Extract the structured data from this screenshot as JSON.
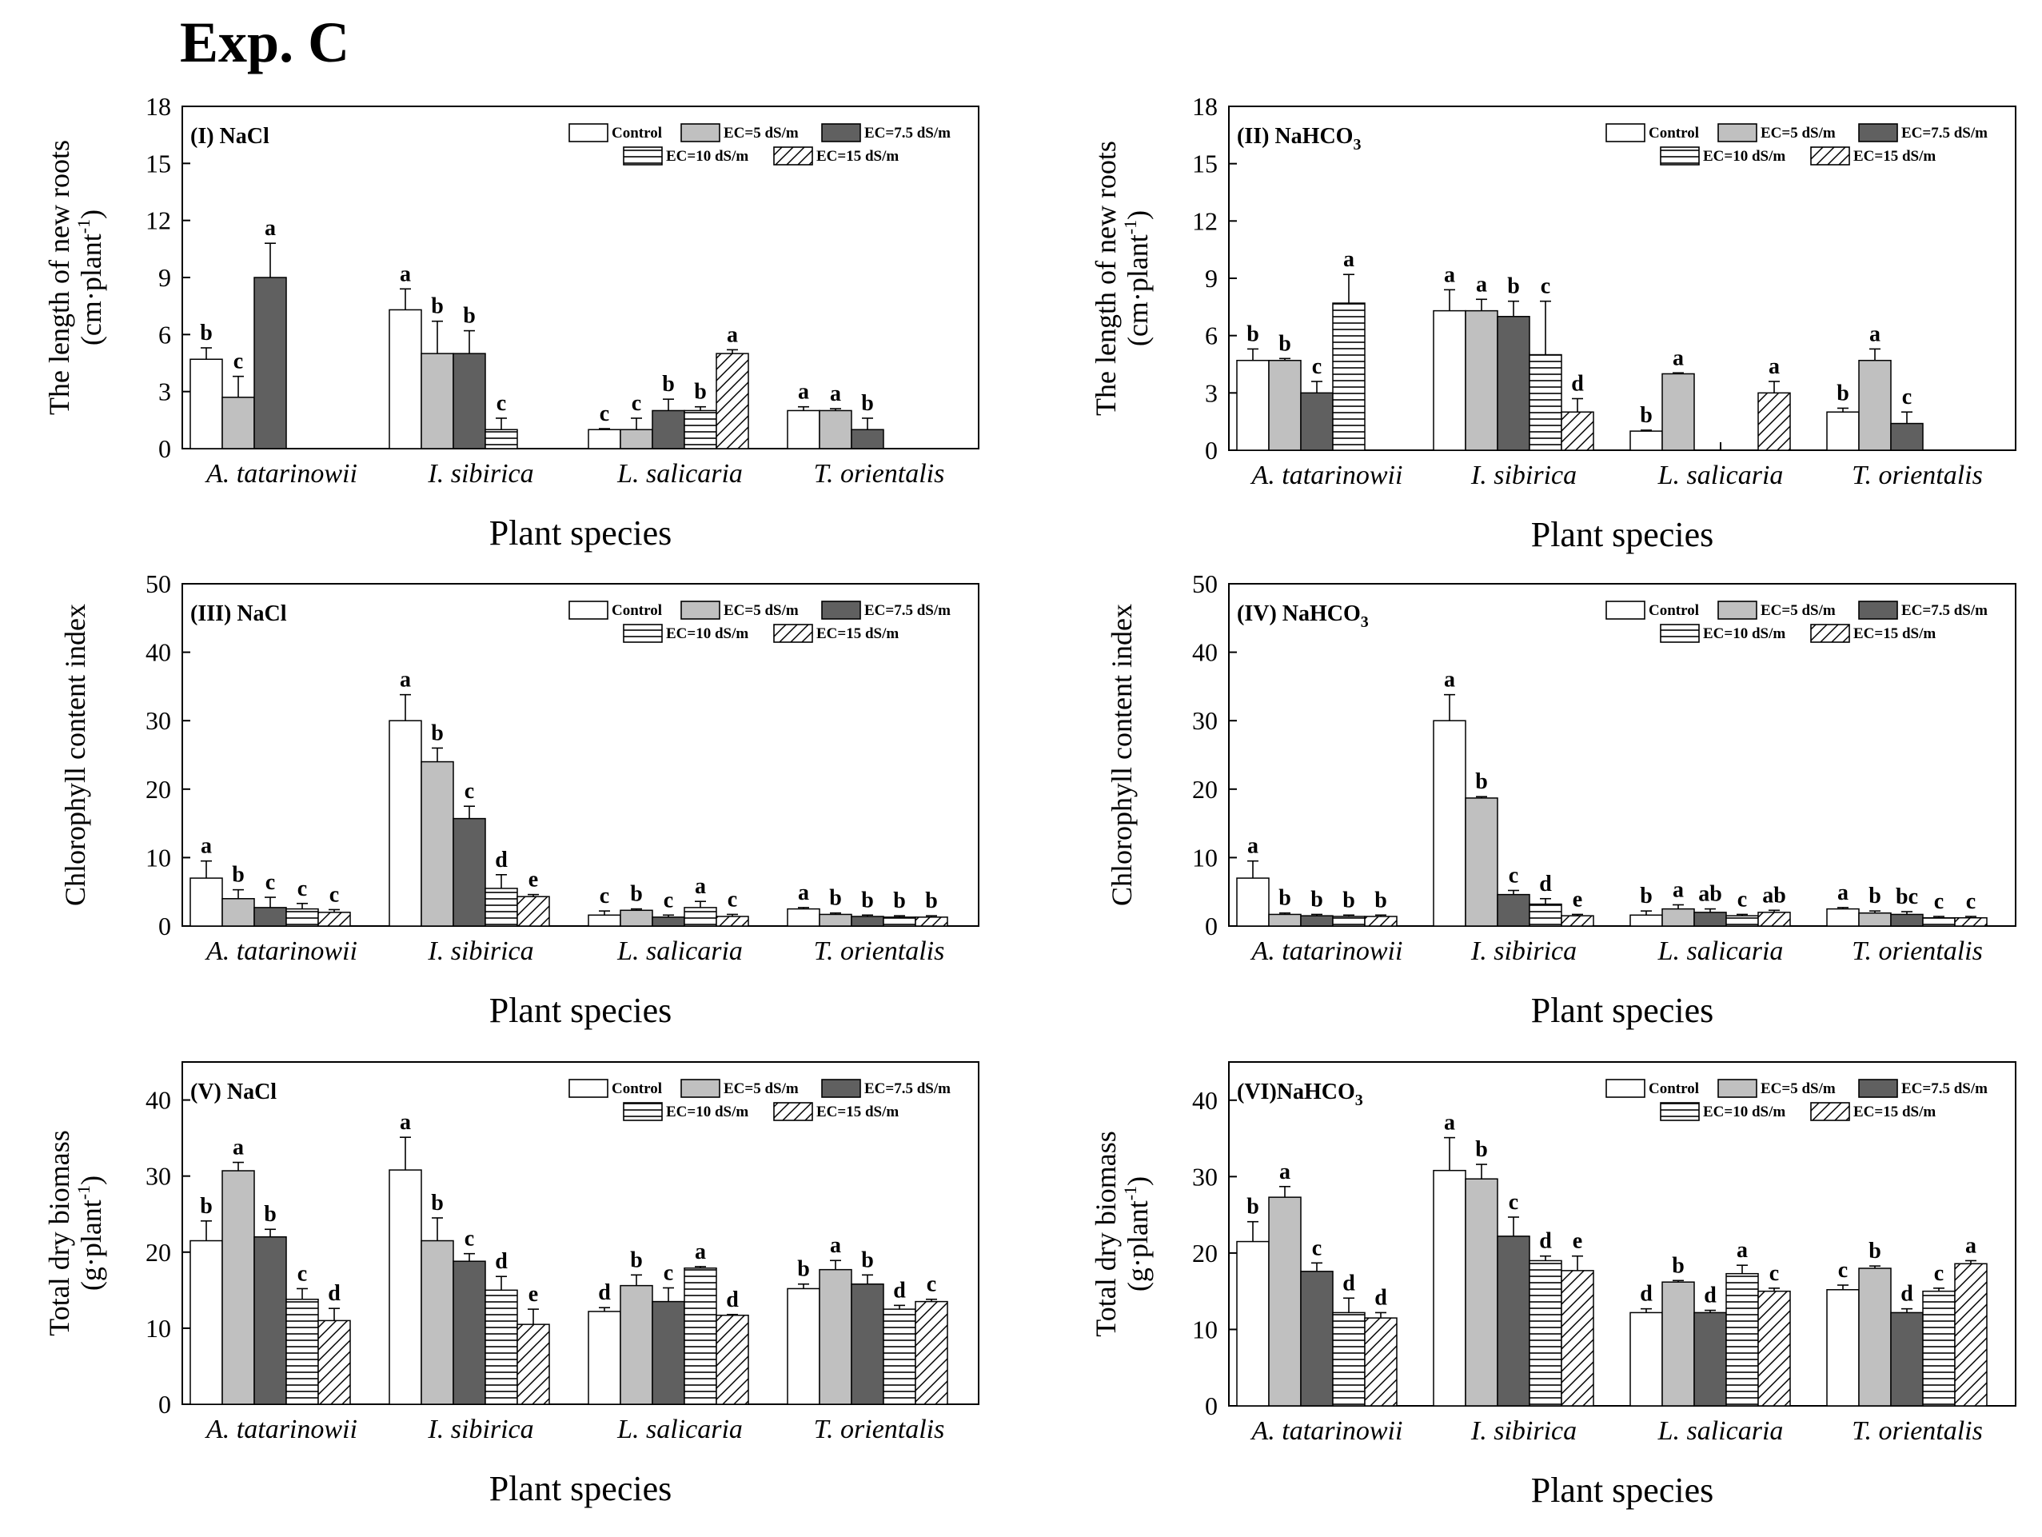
{
  "page_title": "Exp. C",
  "colors": {
    "control": "#ffffff",
    "ec5": "#c0c0c0",
    "ec75": "#606060",
    "ec10": "#ffffff",
    "ec15": "#ffffff",
    "axis": "#000000"
  },
  "legend_labels": [
    "Control",
    "EC=5 dS/m",
    "EC=7.5 dS/m",
    "EC=10 dS/m",
    "EC=15 dS/m"
  ],
  "chart_data": [
    {
      "type": "bar",
      "panel": "(I) NaCl",
      "title": "(I) NaCl",
      "xlabel": "Plant species",
      "ylabel_line1": "The length of new roots",
      "ylabel_line2": "(cm·plant",
      "ylabel_sup": "-1",
      "ylabel_end": ")",
      "ylim": [
        0,
        18
      ],
      "yticks": [
        0,
        3,
        6,
        9,
        12,
        15,
        18
      ],
      "categories": [
        "A. tatarinowii",
        "I. sibirica",
        "L. salicaria",
        "T. orientalis"
      ],
      "series": [
        {
          "name": "Control",
          "values": [
            4.7,
            7.3,
            1.0,
            2.0
          ],
          "errors": [
            0.6,
            1.1,
            0.05,
            0.2
          ],
          "letters": [
            "b",
            "a",
            "c",
            "a"
          ]
        },
        {
          "name": "EC=5 dS/m",
          "values": [
            2.7,
            5.0,
            1.0,
            2.0
          ],
          "errors": [
            1.1,
            1.7,
            0.6,
            0.1
          ],
          "letters": [
            "c",
            "b",
            "c",
            "a"
          ]
        },
        {
          "name": "EC=7.5 dS/m",
          "values": [
            9.0,
            5.0,
            2.0,
            1.0
          ],
          "errors": [
            1.8,
            1.2,
            0.6,
            0.6
          ],
          "letters": [
            "a",
            "b",
            "b",
            "b"
          ]
        },
        {
          "name": "EC=10 dS/m",
          "values": [
            null,
            1.0,
            2.0,
            null
          ],
          "errors": [
            0,
            0.6,
            0.2,
            0
          ],
          "letters": [
            "",
            "c",
            "b",
            ""
          ]
        },
        {
          "name": "EC=15 dS/m",
          "values": [
            null,
            null,
            5.0,
            null
          ],
          "errors": [
            0,
            0,
            0.2,
            0
          ],
          "letters": [
            "",
            "",
            "a",
            ""
          ]
        }
      ]
    },
    {
      "type": "bar",
      "panel": "(II) NaHCO3",
      "title": "(II) NaHCO",
      "title_sub": "3",
      "xlabel": "Plant species",
      "ylabel_line1": "The length of new roots",
      "ylabel_line2": "(cm·plant",
      "ylabel_sup": "-1",
      "ylabel_end": ")",
      "ylim": [
        0,
        18
      ],
      "yticks": [
        0,
        3,
        6,
        9,
        12,
        15,
        18
      ],
      "categories": [
        "A. tatarinowii",
        "I. sibirica",
        "L. salicaria",
        "T. orientalis"
      ],
      "series": [
        {
          "name": "Control",
          "values": [
            4.7,
            7.3,
            1.0,
            2.0
          ],
          "errors": [
            0.6,
            1.1,
            0.05,
            0.2
          ],
          "letters": [
            "b",
            "a",
            "b",
            "b"
          ]
        },
        {
          "name": "EC=5 dS/m",
          "values": [
            4.7,
            7.3,
            4.0,
            4.7
          ],
          "errors": [
            0.1,
            0.6,
            0.05,
            0.6
          ],
          "letters": [
            "b",
            "a",
            "a",
            "a"
          ]
        },
        {
          "name": "EC=7.5 dS/m",
          "values": [
            3.0,
            7.0,
            null,
            1.4
          ],
          "errors": [
            0.6,
            0.8,
            0,
            0.6
          ],
          "letters": [
            "c",
            "b",
            "",
            "c"
          ]
        },
        {
          "name": "EC=10 dS/m",
          "values": [
            7.7,
            5.0,
            null,
            null
          ],
          "errors": [
            1.5,
            2.8,
            0,
            0
          ],
          "letters": [
            "a",
            "c",
            "",
            ""
          ]
        },
        {
          "name": "EC=15 dS/m",
          "values": [
            null,
            2.0,
            3.0,
            null
          ],
          "errors": [
            0,
            0.7,
            0.6,
            0
          ],
          "letters": [
            "",
            "d",
            "a",
            ""
          ]
        }
      ]
    },
    {
      "type": "bar",
      "panel": "(III) NaCl",
      "title": "(III) NaCl",
      "xlabel": "Plant species",
      "ylabel_line1": "Chlorophyll content index",
      "ylim": [
        0,
        50
      ],
      "yticks": [
        0,
        10,
        20,
        30,
        40,
        50
      ],
      "categories": [
        "A. tatarinowii",
        "I. sibirica",
        "L. salicaria",
        "T. orientalis"
      ],
      "series": [
        {
          "name": "Control",
          "values": [
            7.0,
            30.0,
            1.6,
            2.5
          ],
          "errors": [
            2.5,
            3.8,
            0.6,
            0.2
          ],
          "letters": [
            "a",
            "a",
            "c",
            "a"
          ]
        },
        {
          "name": "EC=5 dS/m",
          "values": [
            4.0,
            24.0,
            2.3,
            1.7
          ],
          "errors": [
            1.3,
            2.0,
            0.2,
            0.2
          ],
          "letters": [
            "b",
            "b",
            "b",
            "b"
          ]
        },
        {
          "name": "EC=7.5 dS/m",
          "values": [
            2.7,
            15.7,
            1.3,
            1.4
          ],
          "errors": [
            1.5,
            1.8,
            0.3,
            0.2
          ],
          "letters": [
            "c",
            "c",
            "c",
            "b"
          ]
        },
        {
          "name": "EC=10 dS/m",
          "values": [
            2.5,
            5.5,
            2.7,
            1.3
          ],
          "errors": [
            0.8,
            2.0,
            0.9,
            0.2
          ],
          "letters": [
            "c",
            "d",
            "a",
            "b"
          ]
        },
        {
          "name": "EC=15 dS/m",
          "values": [
            2.0,
            4.3,
            1.4,
            1.3
          ],
          "errors": [
            0.4,
            0.3,
            0.3,
            0.2
          ],
          "letters": [
            "c",
            "e",
            "c",
            "b"
          ]
        }
      ]
    },
    {
      "type": "bar",
      "panel": "(IV) NaHCO3",
      "title": "(IV) NaHCO",
      "title_sub": "3",
      "xlabel": "Plant species",
      "ylabel_line1": "Chlorophyll content index",
      "ylim": [
        0,
        50
      ],
      "yticks": [
        0,
        10,
        20,
        30,
        40,
        50
      ],
      "categories": [
        "A. tatarinowii",
        "I. sibirica",
        "L. salicaria",
        "T. orientalis"
      ],
      "series": [
        {
          "name": "Control",
          "values": [
            7.0,
            30.0,
            1.6,
            2.5
          ],
          "errors": [
            2.5,
            3.8,
            0.6,
            0.2
          ],
          "letters": [
            "a",
            "a",
            "b",
            "a"
          ]
        },
        {
          "name": "EC=5 dS/m",
          "values": [
            1.7,
            18.7,
            2.5,
            1.9
          ],
          "errors": [
            0.2,
            0.2,
            0.6,
            0.3
          ],
          "letters": [
            "b",
            "b",
            "a",
            "b"
          ]
        },
        {
          "name": "EC=7.5 dS/m",
          "values": [
            1.5,
            4.6,
            2.0,
            1.7
          ],
          "errors": [
            0.2,
            0.6,
            0.5,
            0.4
          ],
          "letters": [
            "b",
            "c",
            "ab",
            "bc"
          ]
        },
        {
          "name": "EC=10 dS/m",
          "values": [
            1.4,
            3.2,
            1.5,
            1.2
          ],
          "errors": [
            0.2,
            0.8,
            0.2,
            0.2
          ],
          "letters": [
            "b",
            "d",
            "c",
            "c"
          ]
        },
        {
          "name": "EC=15 dS/m",
          "values": [
            1.4,
            1.5,
            2.0,
            1.2
          ],
          "errors": [
            0.2,
            0.2,
            0.3,
            0.2
          ],
          "letters": [
            "b",
            "e",
            "ab",
            "c"
          ]
        }
      ]
    },
    {
      "type": "bar",
      "panel": "(V) NaCl",
      "title": "(V) NaCl",
      "xlabel": "Plant species",
      "ylabel_line1": "Total dry biomass",
      "ylabel_line2": "(g·plant",
      "ylabel_sup": "-1",
      "ylabel_end": ")",
      "ylim": [
        0,
        45
      ],
      "yticks": [
        0,
        10,
        20,
        30,
        40
      ],
      "categories": [
        "A. tatarinowii",
        "I. sibirica",
        "L. salicaria",
        "T. orientalis"
      ],
      "series": [
        {
          "name": "Control",
          "values": [
            21.5,
            30.8,
            12.2,
            15.2
          ],
          "errors": [
            2.6,
            4.3,
            0.5,
            0.6
          ],
          "letters": [
            "b",
            "a",
            "d",
            "b"
          ]
        },
        {
          "name": "EC=5 dS/m",
          "values": [
            30.7,
            21.5,
            15.6,
            17.7
          ],
          "errors": [
            1.1,
            3.0,
            1.4,
            1.2
          ],
          "letters": [
            "a",
            "b",
            "b",
            "a"
          ]
        },
        {
          "name": "EC=7.5 dS/m",
          "values": [
            22.0,
            18.8,
            13.5,
            15.8
          ],
          "errors": [
            1.0,
            1.0,
            1.8,
            1.2
          ],
          "letters": [
            "b",
            "c",
            "c",
            "b"
          ]
        },
        {
          "name": "EC=10 dS/m",
          "values": [
            13.8,
            15.0,
            17.9,
            12.5
          ],
          "errors": [
            1.4,
            1.8,
            0.2,
            0.5
          ],
          "letters": [
            "c",
            "d",
            "a",
            "d"
          ]
        },
        {
          "name": "EC=15 dS/m",
          "values": [
            11.0,
            10.5,
            11.7,
            13.5
          ],
          "errors": [
            1.6,
            2.0,
            0.1,
            0.3
          ],
          "letters": [
            "d",
            "e",
            "d",
            "c"
          ]
        }
      ]
    },
    {
      "type": "bar",
      "panel": "(VI) NaHCO3",
      "title": "(VI)NaHCO",
      "title_sub": "3",
      "xlabel": "Plant species",
      "ylabel_line1": "Total dry biomass",
      "ylabel_line2": "(g·plant",
      "ylabel_sup": "-1",
      "ylabel_end": ")",
      "ylim": [
        0,
        45
      ],
      "yticks": [
        0,
        10,
        20,
        30,
        40
      ],
      "categories": [
        "A. tatarinowii",
        "I. sibirica",
        "L. salicaria",
        "T. orientalis"
      ],
      "series": [
        {
          "name": "Control",
          "values": [
            21.5,
            30.8,
            12.2,
            15.2
          ],
          "errors": [
            2.6,
            4.3,
            0.5,
            0.6
          ],
          "letters": [
            "b",
            "a",
            "d",
            "c"
          ]
        },
        {
          "name": "EC=5 dS/m",
          "values": [
            27.3,
            29.7,
            16.2,
            18.0
          ],
          "errors": [
            1.4,
            1.9,
            0.2,
            0.3
          ],
          "letters": [
            "a",
            "b",
            "b",
            "b"
          ]
        },
        {
          "name": "EC=7.5 dS/m",
          "values": [
            17.6,
            22.2,
            12.2,
            12.2
          ],
          "errors": [
            1.1,
            2.5,
            0.3,
            0.5
          ],
          "letters": [
            "c",
            "c",
            "d",
            "d"
          ]
        },
        {
          "name": "EC=10 dS/m",
          "values": [
            12.2,
            19.0,
            17.3,
            15.0
          ],
          "errors": [
            1.9,
            0.6,
            1.1,
            0.4
          ],
          "letters": [
            "d",
            "d",
            "a",
            "c"
          ]
        },
        {
          "name": "EC=15 dS/m",
          "values": [
            11.5,
            17.7,
            15.0,
            18.6
          ],
          "errors": [
            0.7,
            1.9,
            0.4,
            0.4
          ],
          "letters": [
            "d",
            "e",
            "c",
            "a"
          ]
        }
      ]
    }
  ]
}
